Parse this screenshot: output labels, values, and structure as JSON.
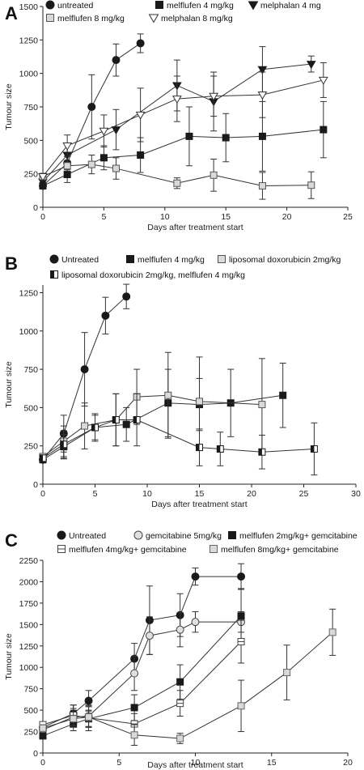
{
  "chart_data": [
    {
      "panel": "A",
      "type": "line",
      "xlabel": "Days after treatment start",
      "ylabel": "Tumour size",
      "xlim": [
        0,
        25
      ],
      "ylim": [
        0,
        1500
      ],
      "xticks": [
        0,
        5,
        10,
        15,
        20,
        25
      ],
      "yticks": [
        0,
        250,
        500,
        750,
        1000,
        1250,
        1500
      ],
      "legend_placement": "top",
      "series": [
        {
          "name": "untreated",
          "marker": "circle",
          "fill": "#1a1a1a",
          "stroke": "#1a1a1a",
          "x": [
            0,
            2,
            4,
            6,
            8
          ],
          "y": [
            160,
            330,
            750,
            1100,
            1225
          ],
          "err": [
            0,
            50,
            240,
            120,
            70
          ]
        },
        {
          "name": "melflufen 4 mg/kg",
          "marker": "square",
          "fill": "#1a1a1a",
          "stroke": "#1a1a1a",
          "x": [
            0,
            2,
            5,
            8,
            12,
            15,
            18,
            23
          ],
          "y": [
            160,
            245,
            370,
            390,
            530,
            520,
            530,
            580
          ],
          "err": [
            0,
            60,
            90,
            130,
            220,
            180,
            260,
            210
          ]
        },
        {
          "name": "melphalan 4 mg",
          "marker": "tri-down",
          "fill": "#1a1a1a",
          "stroke": "#1a1a1a",
          "x": [
            0,
            2,
            6,
            11,
            14,
            18,
            22
          ],
          "y": [
            190,
            390,
            580,
            910,
            790,
            1030,
            1070
          ],
          "err": [
            0,
            80,
            150,
            190,
            220,
            170,
            60
          ]
        },
        {
          "name": "melflufen 8 mg/kg",
          "marker": "square",
          "fill": "#d9d9d9",
          "stroke": "#555",
          "x": [
            0,
            2,
            4,
            6,
            11,
            14,
            18,
            22
          ],
          "y": [
            230,
            310,
            320,
            290,
            180,
            240,
            160,
            165
          ],
          "err": [
            0,
            40,
            70,
            80,
            40,
            120,
            100,
            100
          ]
        },
        {
          "name": "melphalan 8 mg/kg",
          "marker": "tri-down",
          "fill": "#ffffff",
          "stroke": "#333",
          "x": [
            0,
            2,
            5,
            8,
            11,
            14,
            18,
            23
          ],
          "y": [
            230,
            460,
            570,
            690,
            810,
            830,
            840,
            950
          ],
          "err": [
            0,
            80,
            120,
            200,
            170,
            150,
            170,
            130
          ]
        }
      ]
    },
    {
      "panel": "B",
      "type": "line",
      "xlabel": "Days after treatment start",
      "ylabel": "Tumour size",
      "xlim": [
        0,
        30
      ],
      "ylim": [
        0,
        1300
      ],
      "xticks": [
        0,
        5,
        10,
        15,
        20,
        25,
        30
      ],
      "yticks": [
        0,
        250,
        500,
        750,
        1000,
        1250
      ],
      "legend_placement": "top",
      "series": [
        {
          "name": "Untreated",
          "marker": "circle",
          "fill": "#1a1a1a",
          "stroke": "#1a1a1a",
          "x": [
            0,
            2,
            4,
            6,
            8
          ],
          "y": [
            160,
            330,
            750,
            1100,
            1225
          ],
          "err": [
            0,
            120,
            240,
            120,
            80
          ]
        },
        {
          "name": "melflufen 4 mg/kg",
          "marker": "square",
          "fill": "#1a1a1a",
          "stroke": "#1a1a1a",
          "x": [
            0,
            2,
            5,
            8,
            12,
            15,
            18,
            23
          ],
          "y": [
            160,
            245,
            370,
            390,
            530,
            520,
            530,
            580
          ],
          "err": [
            0,
            80,
            90,
            110,
            220,
            170,
            220,
            210
          ]
        },
        {
          "name": "liposomal doxorubicin 2mg/kg",
          "marker": "square",
          "fill": "#d9d9d9",
          "stroke": "#555",
          "x": [
            0,
            2,
            4,
            7,
            9,
            12,
            15,
            21
          ],
          "y": [
            180,
            280,
            380,
            420,
            570,
            580,
            540,
            520
          ],
          "err": [
            0,
            100,
            150,
            170,
            180,
            280,
            290,
            300
          ]
        },
        {
          "name": "liposomal doxorubicin 2mg/kg, melflufen 4 mg/kg",
          "marker": "half-square",
          "fill": "#ffffff",
          "stroke": "#1a1a1a",
          "x": [
            0,
            2,
            5,
            7,
            9,
            15,
            17,
            21,
            26
          ],
          "y": [
            170,
            260,
            370,
            420,
            420,
            240,
            230,
            210,
            230
          ],
          "err": [
            0,
            90,
            80,
            170,
            170,
            120,
            110,
            110,
            170
          ]
        }
      ]
    },
    {
      "panel": "C",
      "type": "line",
      "xlabel": "Days after treatment start",
      "ylabel": "Tumour size",
      "xlim": [
        0,
        20
      ],
      "ylim": [
        0,
        2250
      ],
      "xticks": [
        0,
        5,
        10,
        15,
        20
      ],
      "yticks": [
        0,
        250,
        500,
        750,
        1000,
        1250,
        1500,
        1750,
        2000,
        2250
      ],
      "legend_placement": "top",
      "series": [
        {
          "name": "Untreated",
          "marker": "circle",
          "fill": "#1a1a1a",
          "stroke": "#1a1a1a",
          "x": [
            0,
            2,
            3,
            6,
            7,
            9,
            10,
            13
          ],
          "y": [
            300,
            460,
            610,
            1100,
            1550,
            1610,
            2060,
            2060
          ],
          "err": [
            0,
            100,
            120,
            180,
            400,
            250,
            100,
            150
          ]
        },
        {
          "name": "gemcitabine 5mg/kg",
          "marker": "circle",
          "fill": "#e0e0e0",
          "stroke": "#444",
          "x": [
            0,
            2,
            3,
            6,
            7,
            9,
            10,
            13
          ],
          "y": [
            270,
            420,
            430,
            930,
            1370,
            1440,
            1530,
            1530
          ],
          "err": [
            0,
            100,
            120,
            200,
            220,
            200,
            120,
            120
          ]
        },
        {
          "name": "melflufen 2mg/kg+ gemcitabine",
          "marker": "square",
          "fill": "#1a1a1a",
          "stroke": "#1a1a1a",
          "x": [
            0,
            2,
            3,
            6,
            9,
            13
          ],
          "y": [
            200,
            340,
            400,
            530,
            830,
            1600
          ],
          "err": [
            0,
            80,
            100,
            150,
            200,
            320
          ]
        },
        {
          "name": "melflufen 4mg/kg+ gemcitabine",
          "marker": "square-dash",
          "fill": "#ffffff",
          "stroke": "#444",
          "x": [
            0,
            2,
            3,
            6,
            9,
            13
          ],
          "y": [
            330,
            440,
            410,
            340,
            580,
            1300
          ],
          "err": [
            0,
            120,
            150,
            120,
            150,
            250
          ]
        },
        {
          "name": "melflufen 8mg/kg+ gemcitabine",
          "marker": "square",
          "fill": "#d9d9d9",
          "stroke": "#666",
          "x": [
            0,
            2,
            3,
            6,
            9,
            13,
            16,
            19
          ],
          "y": [
            290,
            400,
            420,
            210,
            170,
            550,
            940,
            1410
          ],
          "err": [
            0,
            100,
            120,
            120,
            60,
            300,
            320,
            270
          ]
        }
      ]
    }
  ]
}
